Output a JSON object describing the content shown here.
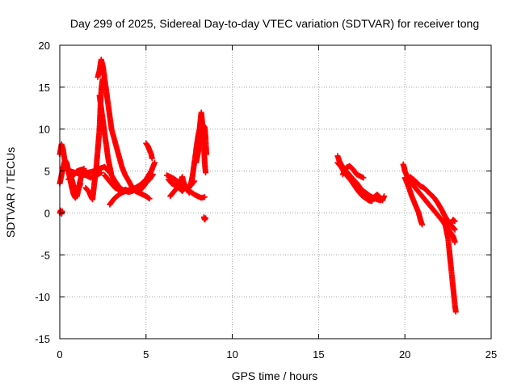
{
  "chart_data": {
    "type": "scatter",
    "title": "Day 299 of 2025, Sidereal Day-to-day VTEC variation (SDTVAR) for receiver tong",
    "xlabel": "GPS time / hours",
    "ylabel": "SDTVAR / TECUs",
    "xlim": [
      0,
      25
    ],
    "ylim": [
      -15,
      20
    ],
    "xticks": [
      0,
      5,
      10,
      15,
      20,
      25
    ],
    "yticks": [
      -15,
      -10,
      -5,
      0,
      5,
      10,
      15,
      20
    ],
    "grid": true,
    "marker": "+",
    "color": "#ff0000",
    "series": [
      {
        "name": "tong",
        "segments": [
          [
            [
              0.0,
              7.0
            ],
            [
              0.1,
              8.2
            ],
            [
              0.2,
              7.5
            ],
            [
              0.3,
              6.0
            ],
            [
              0.4,
              5.5
            ],
            [
              0.5,
              5.0
            ],
            [
              0.6,
              4.5
            ],
            [
              0.7,
              4.0
            ],
            [
              0.8,
              3.2
            ],
            [
              0.9,
              2.5
            ],
            [
              1.0,
              2.0
            ],
            [
              1.1,
              3.0
            ],
            [
              1.2,
              4.0
            ],
            [
              1.3,
              4.8
            ],
            [
              1.4,
              5.3
            ]
          ],
          [
            [
              0.0,
              3.5
            ],
            [
              0.1,
              4.5
            ],
            [
              0.2,
              5.5
            ],
            [
              0.3,
              6.3
            ],
            [
              0.4,
              6.0
            ],
            [
              0.5,
              5.0
            ],
            [
              0.6,
              4.0
            ],
            [
              0.7,
              3.0
            ],
            [
              0.8,
              2.2
            ],
            [
              0.9,
              1.8
            ],
            [
              1.0,
              2.4
            ],
            [
              1.2,
              3.5
            ]
          ],
          [
            [
              0.0,
              0.0
            ],
            [
              0.05,
              0.3
            ],
            [
              0.1,
              -0.1
            ],
            [
              0.15,
              0.2
            ]
          ],
          [
            [
              0.5,
              4.0
            ],
            [
              0.8,
              4.5
            ],
            [
              1.0,
              5.0
            ],
            [
              1.3,
              5.2
            ],
            [
              1.6,
              4.8
            ],
            [
              2.0,
              5.0
            ],
            [
              2.3,
              5.3
            ],
            [
              2.6,
              5.5
            ],
            [
              2.8,
              5.0
            ]
          ],
          [
            [
              0.6,
              5.0
            ],
            [
              0.9,
              4.8
            ],
            [
              1.2,
              4.6
            ],
            [
              1.5,
              4.5
            ],
            [
              1.8,
              4.2
            ],
            [
              2.1,
              4.5
            ],
            [
              2.4,
              4.8
            ]
          ],
          [
            [
              1.5,
              3.0
            ],
            [
              1.7,
              2.5
            ],
            [
              1.8,
              2.0
            ],
            [
              1.9,
              1.6
            ],
            [
              2.0,
              3.5
            ],
            [
              2.1,
              5.0
            ],
            [
              2.2,
              7.5
            ],
            [
              2.3,
              10.0
            ],
            [
              2.35,
              12.5
            ],
            [
              2.4,
              14.5
            ],
            [
              2.45,
              15.6
            ],
            [
              2.5,
              16.0
            ]
          ],
          [
            [
              2.2,
              16.2
            ],
            [
              2.3,
              17.0
            ],
            [
              2.4,
              18.3
            ],
            [
              2.5,
              17.5
            ],
            [
              2.6,
              16.0
            ],
            [
              2.7,
              14.5
            ],
            [
              2.8,
              13.0
            ],
            [
              2.9,
              11.5
            ],
            [
              3.0,
              10.0
            ],
            [
              3.2,
              8.5
            ],
            [
              3.4,
              7.0
            ],
            [
              3.6,
              5.5
            ],
            [
              3.8,
              4.5
            ],
            [
              4.0,
              3.8
            ],
            [
              4.2,
              3.0
            ],
            [
              4.4,
              2.6
            ],
            [
              4.6,
              2.4
            ],
            [
              4.8,
              2.2
            ],
            [
              5.0,
              2.0
            ],
            [
              5.2,
              1.7
            ]
          ],
          [
            [
              2.3,
              14.0
            ],
            [
              2.4,
              12.5
            ],
            [
              2.5,
              11.0
            ],
            [
              2.6,
              9.5
            ],
            [
              2.7,
              8.0
            ],
            [
              2.8,
              6.5
            ],
            [
              2.9,
              5.5
            ],
            [
              3.0,
              4.5
            ],
            [
              3.2,
              3.8
            ],
            [
              3.4,
              3.2
            ],
            [
              3.6,
              2.8
            ],
            [
              3.8,
              2.6
            ],
            [
              4.0,
              2.5
            ],
            [
              4.2,
              2.6
            ],
            [
              4.4,
              2.8
            ]
          ],
          [
            [
              2.6,
              4.5
            ],
            [
              2.8,
              4.0
            ],
            [
              3.0,
              3.5
            ],
            [
              3.2,
              3.0
            ],
            [
              3.4,
              2.8
            ],
            [
              3.6,
              2.6
            ],
            [
              3.8,
              2.8
            ],
            [
              4.0,
              2.6
            ]
          ],
          [
            [
              2.9,
              1.0
            ],
            [
              3.0,
              1.3
            ],
            [
              3.2,
              1.8
            ],
            [
              3.5,
              2.3
            ],
            [
              3.8,
              2.6
            ],
            [
              4.1,
              2.8
            ],
            [
              4.4,
              3.0
            ],
            [
              4.7,
              3.4
            ],
            [
              5.0,
              4.0
            ],
            [
              5.3,
              5.0
            ],
            [
              5.5,
              6.0
            ]
          ],
          [
            [
              5.0,
              8.3
            ],
            [
              5.1,
              8.0
            ],
            [
              5.2,
              7.5
            ],
            [
              5.3,
              7.0
            ],
            [
              5.35,
              6.5
            ]
          ],
          [
            [
              4.5,
              2.5
            ],
            [
              4.8,
              3.0
            ],
            [
              5.0,
              3.6
            ],
            [
              5.2,
              4.0
            ],
            [
              5.4,
              4.6
            ]
          ],
          [
            [
              6.2,
              4.5
            ],
            [
              6.4,
              4.3
            ],
            [
              6.6,
              4.1
            ],
            [
              6.8,
              3.8
            ],
            [
              7.0,
              3.5
            ],
            [
              7.2,
              3.0
            ],
            [
              7.4,
              2.8
            ],
            [
              7.6,
              2.5
            ],
            [
              7.8,
              2.2
            ],
            [
              8.0,
              2.0
            ],
            [
              8.2,
              1.8
            ],
            [
              8.4,
              1.9
            ]
          ],
          [
            [
              6.4,
              2.0
            ],
            [
              6.6,
              2.5
            ],
            [
              6.8,
              3.0
            ],
            [
              7.0,
              3.8
            ],
            [
              7.1,
              4.3
            ],
            [
              7.2,
              3.5
            ],
            [
              7.4,
              3.0
            ],
            [
              7.6,
              3.3
            ],
            [
              7.8,
              3.8
            ]
          ],
          [
            [
              6.3,
              4.0
            ],
            [
              6.5,
              3.5
            ],
            [
              6.7,
              3.3
            ],
            [
              6.9,
              3.0
            ],
            [
              7.1,
              2.6
            ],
            [
              7.3,
              3.2
            ],
            [
              7.5,
              2.4
            ]
          ],
          [
            [
              7.5,
              3.0
            ],
            [
              7.6,
              3.5
            ],
            [
              7.7,
              4.5
            ],
            [
              7.8,
              6.0
            ],
            [
              7.9,
              7.5
            ],
            [
              8.0,
              9.0
            ],
            [
              8.1,
              10.0
            ],
            [
              8.15,
              11.0
            ],
            [
              8.2,
              12.0
            ],
            [
              8.25,
              11.0
            ],
            [
              8.3,
              9.5
            ],
            [
              8.35,
              8.0
            ],
            [
              8.4,
              6.0
            ],
            [
              8.45,
              4.8
            ]
          ],
          [
            [
              7.9,
              6.0
            ],
            [
              8.0,
              7.0
            ],
            [
              8.1,
              8.3
            ],
            [
              8.2,
              9.5
            ],
            [
              8.3,
              10.5
            ],
            [
              8.4,
              10.2
            ],
            [
              8.45,
              9.0
            ],
            [
              8.5,
              7.0
            ]
          ],
          [
            [
              8.35,
              -0.5
            ],
            [
              8.4,
              -0.8
            ],
            [
              8.45,
              -0.6
            ]
          ],
          [
            [
              16.1,
              6.8
            ],
            [
              16.2,
              6.2
            ],
            [
              16.3,
              5.8
            ],
            [
              16.4,
              5.5
            ],
            [
              16.5,
              5.2
            ],
            [
              16.6,
              5.0
            ],
            [
              16.8,
              4.5
            ],
            [
              17.0,
              4.0
            ],
            [
              17.2,
              3.6
            ],
            [
              17.4,
              3.0
            ],
            [
              17.6,
              2.6
            ],
            [
              17.8,
              2.3
            ],
            [
              18.0,
              2.0
            ],
            [
              18.2,
              1.8
            ],
            [
              18.4,
              1.6
            ],
            [
              18.6,
              1.5
            ]
          ],
          [
            [
              16.1,
              6.0
            ],
            [
              16.3,
              5.5
            ],
            [
              16.5,
              4.8
            ],
            [
              16.7,
              4.3
            ],
            [
              16.9,
              3.8
            ],
            [
              17.1,
              3.2
            ],
            [
              17.3,
              2.6
            ],
            [
              17.5,
              2.1
            ],
            [
              17.7,
              1.8
            ],
            [
              17.9,
              1.5
            ],
            [
              18.1,
              1.4
            ]
          ],
          [
            [
              16.4,
              4.6
            ],
            [
              16.6,
              5.4
            ],
            [
              16.8,
              5.6
            ],
            [
              17.0,
              5.2
            ],
            [
              17.2,
              4.6
            ],
            [
              17.6,
              4.2
            ]
          ],
          [
            [
              17.8,
              1.8
            ],
            [
              18.1,
              1.7
            ],
            [
              18.4,
              2.2
            ],
            [
              18.7,
              1.5
            ],
            [
              18.8,
              2.0
            ]
          ],
          [
            [
              19.9,
              5.8
            ],
            [
              19.95,
              5.5
            ],
            [
              20.0,
              5.0
            ],
            [
              20.1,
              4.5
            ],
            [
              20.2,
              4.0
            ],
            [
              20.4,
              3.5
            ],
            [
              20.6,
              3.0
            ],
            [
              20.8,
              2.5
            ],
            [
              21.0,
              2.0
            ],
            [
              21.2,
              1.5
            ],
            [
              21.4,
              1.0
            ],
            [
              21.6,
              0.5
            ],
            [
              21.8,
              0.0
            ],
            [
              22.0,
              -0.5
            ],
            [
              22.2,
              -1.0
            ],
            [
              22.4,
              -1.6
            ],
            [
              22.6,
              -2.2
            ],
            [
              22.8,
              -2.8
            ],
            [
              22.9,
              -3.5
            ]
          ],
          [
            [
              20.0,
              4.2
            ],
            [
              20.2,
              3.2
            ],
            [
              20.4,
              2.0
            ],
            [
              20.6,
              1.0
            ],
            [
              20.8,
              0.0
            ],
            [
              20.9,
              -0.8
            ],
            [
              21.0,
              -1.4
            ]
          ],
          [
            [
              20.3,
              4.3
            ],
            [
              20.5,
              4.0
            ],
            [
              20.7,
              3.6
            ],
            [
              20.9,
              3.2
            ],
            [
              21.1,
              3.0
            ],
            [
              21.3,
              2.6
            ],
            [
              21.5,
              2.2
            ],
            [
              21.7,
              1.8
            ],
            [
              21.9,
              1.2
            ],
            [
              22.1,
              0.5
            ],
            [
              22.3,
              -0.3
            ],
            [
              22.5,
              -1.0
            ],
            [
              22.7,
              -1.5
            ],
            [
              22.9,
              -2.0
            ]
          ],
          [
            [
              22.3,
              -1.0
            ],
            [
              22.4,
              -2.0
            ],
            [
              22.5,
              -3.0
            ],
            [
              22.55,
              -4.0
            ],
            [
              22.6,
              -5.0
            ],
            [
              22.65,
              -6.0
            ],
            [
              22.7,
              -7.0
            ],
            [
              22.75,
              -8.0
            ],
            [
              22.8,
              -9.0
            ],
            [
              22.85,
              -10.0
            ],
            [
              22.9,
              -11.0
            ],
            [
              22.95,
              -11.8
            ]
          ],
          [
            [
              22.7,
              -1.2
            ],
            [
              22.8,
              -0.8
            ],
            [
              22.9,
              -1.0
            ]
          ]
        ]
      }
    ]
  }
}
